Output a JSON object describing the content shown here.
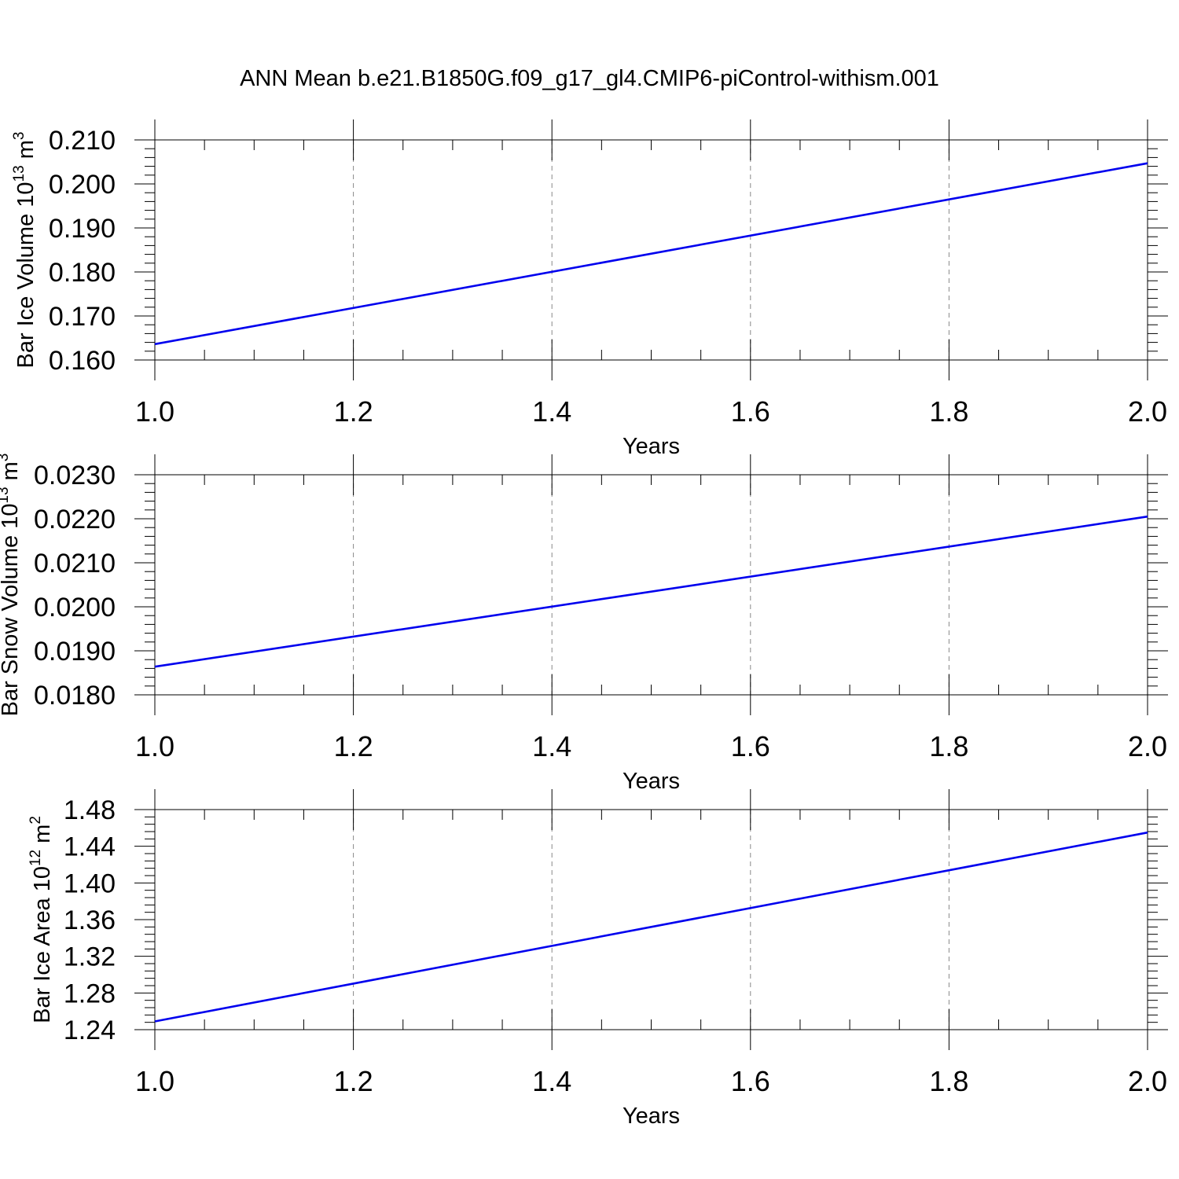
{
  "title": "ANN Mean b.e21.B1850G.f09_g17_gl4.CMIP6-piControl-withism.001",
  "colors": {
    "line": "#0000ee",
    "frame": "#000000",
    "grid": "#888888"
  },
  "chart_data": [
    {
      "type": "line",
      "ylabel": {
        "main": "Bar Ice Volume 10",
        "sup": "13",
        "unit": " m",
        "unit_sup": "3"
      },
      "xlabel": "Years",
      "x": [
        1.0,
        2.0
      ],
      "series": [
        {
          "values": [
            0.1636,
            0.2047
          ]
        }
      ],
      "xlim": [
        1.0,
        2.0
      ],
      "ylim": [
        0.16,
        0.21
      ],
      "xticks": [
        "1.0",
        "1.2",
        "1.4",
        "1.6",
        "1.8",
        "2.0"
      ],
      "yticks": [
        "0.160",
        "0.170",
        "0.180",
        "0.190",
        "0.200",
        "0.210"
      ],
      "grid": "vertical dashed"
    },
    {
      "type": "line",
      "ylabel": {
        "main": "Bar Snow Volume 10",
        "sup": "13",
        "unit": " m",
        "unit_sup": "3"
      },
      "xlabel": "Years",
      "x": [
        1.0,
        2.0
      ],
      "series": [
        {
          "values": [
            0.01864,
            0.02205
          ]
        }
      ],
      "xlim": [
        1.0,
        2.0
      ],
      "ylim": [
        0.018,
        0.023
      ],
      "xticks": [
        "1.0",
        "1.2",
        "1.4",
        "1.6",
        "1.8",
        "2.0"
      ],
      "yticks": [
        "0.0180",
        "0.0190",
        "0.0200",
        "0.0210",
        "0.0220",
        "0.0230"
      ],
      "grid": "vertical dashed"
    },
    {
      "type": "line",
      "ylabel": {
        "main": "Bar Ice Area 10",
        "sup": "12",
        "unit": " m",
        "unit_sup": "2"
      },
      "xlabel": "Years",
      "x": [
        1.0,
        2.0
      ],
      "series": [
        {
          "values": [
            1.249,
            1.455
          ]
        }
      ],
      "xlim": [
        1.0,
        2.0
      ],
      "ylim": [
        1.24,
        1.48
      ],
      "xticks": [
        "1.0",
        "1.2",
        "1.4",
        "1.6",
        "1.8",
        "2.0"
      ],
      "yticks": [
        "1.24",
        "1.28",
        "1.32",
        "1.36",
        "1.40",
        "1.44",
        "1.48"
      ],
      "grid": "vertical dashed"
    }
  ]
}
